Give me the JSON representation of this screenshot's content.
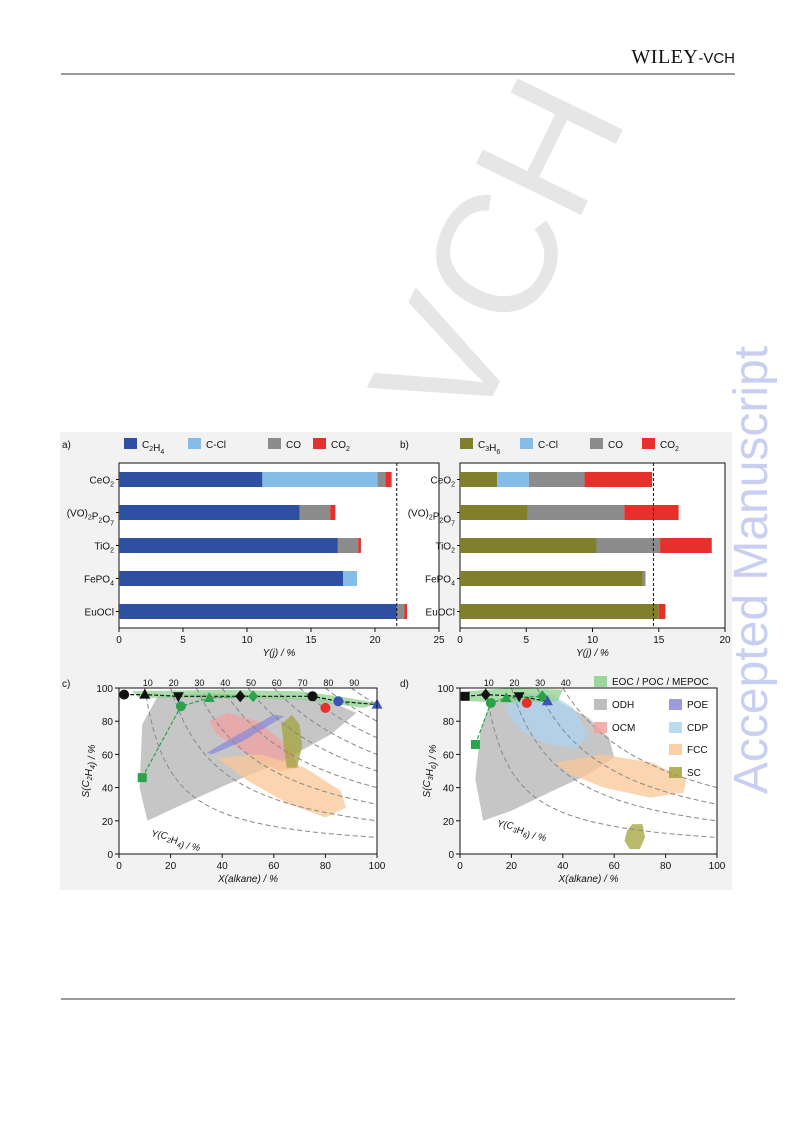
{
  "header": {
    "publisher": "WILEY",
    "publisher_suffix": "-VCH"
  },
  "watermarks": {
    "diagonal": "VCH",
    "vertical": "Accepted Manuscript"
  },
  "chart_data": [
    {
      "panel": "a)",
      "type": "bar",
      "orientation": "horizontal",
      "stacked": true,
      "categories": [
        "CeO2",
        "(VO)2P2O7",
        "TiO2",
        "FePO4",
        "EuOCl"
      ],
      "series": [
        {
          "name": "C2H4",
          "color": "#2f4fa3",
          "values": [
            11.2,
            14.1,
            17.1,
            17.5,
            21.7
          ]
        },
        {
          "name": "C-Cl",
          "color": "#85bde6",
          "values": [
            9.0,
            0.0,
            0.0,
            1.1,
            0.0
          ]
        },
        {
          "name": "CO",
          "color": "#8c8c8c",
          "values": [
            0.6,
            2.4,
            1.6,
            0.0,
            0.6
          ]
        },
        {
          "name": "CO2",
          "color": "#e5302b",
          "values": [
            0.5,
            0.4,
            0.2,
            0.0,
            0.2
          ]
        }
      ],
      "reference_line": 21.7,
      "xlabel": "Y(j) / %",
      "xlim": [
        0,
        25
      ],
      "xticks": [
        0,
        5,
        10,
        15,
        20,
        25
      ]
    },
    {
      "panel": "b)",
      "type": "bar",
      "orientation": "horizontal",
      "stacked": true,
      "categories": [
        "CeO2",
        "(VO)2P2O7",
        "TiO2",
        "FePO4",
        "EuOCl"
      ],
      "series": [
        {
          "name": "C3H6",
          "color": "#7f7f2c",
          "values": [
            2.8,
            5.1,
            10.3,
            13.8,
            15.0
          ]
        },
        {
          "name": "C-Cl",
          "color": "#85bde6",
          "values": [
            2.4,
            0.0,
            0.0,
            0.0,
            0.0
          ]
        },
        {
          "name": "CO",
          "color": "#8c8c8c",
          "values": [
            4.2,
            7.3,
            4.8,
            0.2,
            0.0
          ]
        },
        {
          "name": "CO2",
          "color": "#e5302b",
          "values": [
            5.1,
            4.1,
            3.9,
            0.0,
            0.5
          ]
        }
      ],
      "reference_line": 14.6,
      "xlabel": "Y(j) / %",
      "xlim": [
        0,
        20
      ],
      "xticks": [
        0,
        5,
        10,
        15,
        20
      ]
    },
    {
      "panel": "c)",
      "type": "scatter",
      "xlabel": "X(alkane) / %",
      "ylabel": "S(C2H4) / %",
      "xlim": [
        0,
        100
      ],
      "ylim": [
        0,
        100
      ],
      "xticks": [
        0,
        20,
        40,
        60,
        80,
        100
      ],
      "yticks": [
        0,
        20,
        40,
        60,
        80,
        100
      ],
      "iso_yield_label": "Y(C2H4) / %",
      "iso_yield_values": [
        "10",
        "20",
        "30",
        "40",
        "50",
        "60",
        "70",
        "80",
        "90"
      ],
      "regions": [
        {
          "name": "ODH",
          "color": "#b3b3b3",
          "points": [
            [
              9,
              78
            ],
            [
              15,
              95
            ],
            [
              35,
              97
            ],
            [
              60,
              95
            ],
            [
              80,
              93
            ],
            [
              92,
              85
            ],
            [
              82,
              72
            ],
            [
              62,
              55
            ],
            [
              42,
              42
            ],
            [
              22,
              28
            ],
            [
              11,
              20
            ],
            [
              8,
              40
            ]
          ]
        },
        {
          "name": "OCM",
          "color": "#f2a0a0",
          "points": [
            [
              35,
              80
            ],
            [
              42,
              85
            ],
            [
              54,
              80
            ],
            [
              66,
              64
            ],
            [
              70,
              52
            ],
            [
              62,
              50
            ],
            [
              50,
              60
            ],
            [
              38,
              72
            ]
          ]
        },
        {
          "name": "FCC",
          "color": "#fac796",
          "points": [
            [
              38,
              58
            ],
            [
              55,
              60
            ],
            [
              72,
              52
            ],
            [
              86,
              38
            ],
            [
              88,
              28
            ],
            [
              80,
              22
            ],
            [
              66,
              30
            ],
            [
              50,
              44
            ]
          ]
        },
        {
          "name": "POE",
          "color": "#8a8ad8",
          "points": [
            [
              36,
              60
            ],
            [
              48,
              68
            ],
            [
              64,
              83
            ],
            [
              60,
              84
            ],
            [
              44,
              70
            ],
            [
              34,
              61
            ]
          ]
        },
        {
          "name": "SC",
          "color": "#a3a33c",
          "points": [
            [
              63,
              78
            ],
            [
              67,
              84
            ],
            [
              70,
              78
            ],
            [
              71,
              65
            ],
            [
              69,
              52
            ],
            [
              65,
              52
            ],
            [
              64,
              63
            ]
          ]
        },
        {
          "name": "EOC / POC / MEPOC",
          "color": "#8fd08f",
          "points": [
            [
              5,
              98
            ],
            [
              40,
              99
            ],
            [
              70,
              98
            ],
            [
              85,
              95
            ],
            [
              100,
              91
            ],
            [
              95,
              88
            ],
            [
              70,
              93
            ],
            [
              40,
              94
            ],
            [
              8,
              94
            ]
          ]
        }
      ],
      "series": [
        {
          "name": "",
          "color": "#111111",
          "marker": "circle",
          "points": [
            [
              2,
              96
            ],
            [
              75,
              95
            ]
          ]
        },
        {
          "name": "",
          "color": "#111111",
          "marker": "triangle-up",
          "points": [
            [
              10,
              96
            ]
          ]
        },
        {
          "name": "",
          "color": "#111111",
          "marker": "triangle-down",
          "points": [
            [
              23,
              95
            ]
          ]
        },
        {
          "name": "",
          "color": "#111111",
          "marker": "diamond",
          "points": [
            [
              47,
              95
            ]
          ]
        },
        {
          "name": "",
          "color": "#2aa34a",
          "marker": "square",
          "points": [
            [
              9,
              46
            ]
          ]
        },
        {
          "name": "",
          "color": "#2aa34a",
          "marker": "circle",
          "points": [
            [
              24,
              89
            ]
          ]
        },
        {
          "name": "",
          "color": "#2aa34a",
          "marker": "triangle-up",
          "points": [
            [
              35,
              94
            ]
          ]
        },
        {
          "name": "",
          "color": "#2aa34a",
          "marker": "diamond",
          "points": [
            [
              52,
              95
            ]
          ]
        },
        {
          "name": "",
          "color": "#e5302b",
          "marker": "circle",
          "points": [
            [
              80,
              88
            ]
          ]
        },
        {
          "name": "",
          "color": "#3a56b5",
          "marker": "circle",
          "points": [
            [
              85,
              92
            ]
          ]
        },
        {
          "name": "",
          "color": "#3a56b5",
          "marker": "triangle-up",
          "points": [
            [
              100,
              90
            ]
          ]
        }
      ]
    },
    {
      "panel": "d)",
      "type": "scatter",
      "xlabel": "X(alkane) / %",
      "ylabel": "S(C3H6) / %",
      "xlim": [
        0,
        100
      ],
      "ylim": [
        0,
        100
      ],
      "xticks": [
        0,
        20,
        40,
        60,
        80,
        100
      ],
      "yticks": [
        0,
        20,
        40,
        60,
        80,
        100
      ],
      "iso_yield_label": "Y(C3H6) / %",
      "iso_yield_values": [
        "10",
        "20",
        "30",
        "40"
      ],
      "legend": [
        "EOC / POC / MEPOC",
        "ODH",
        "POE",
        "OCM",
        "CDP",
        "FCC",
        "SC"
      ],
      "regions": [
        {
          "name": "ODH",
          "color": "#b3b3b3",
          "points": [
            [
              8,
              75
            ],
            [
              12,
              92
            ],
            [
              24,
              97
            ],
            [
              38,
              92
            ],
            [
              50,
              82
            ],
            [
              58,
              70
            ],
            [
              60,
              58
            ],
            [
              50,
              48
            ],
            [
              36,
              38
            ],
            [
              20,
              26
            ],
            [
              9,
              20
            ],
            [
              6,
              45
            ]
          ]
        },
        {
          "name": "CDP",
          "color": "#aed3f0",
          "points": [
            [
              18,
              90
            ],
            [
              25,
              97
            ],
            [
              36,
              96
            ],
            [
              44,
              88
            ],
            [
              50,
              72
            ],
            [
              46,
              64
            ],
            [
              34,
              66
            ],
            [
              24,
              74
            ],
            [
              19,
              84
            ]
          ]
        },
        {
          "name": "FCC",
          "color": "#fac796",
          "points": [
            [
              37,
              55
            ],
            [
              55,
              60
            ],
            [
              75,
              55
            ],
            [
              88,
              45
            ],
            [
              87,
              37
            ],
            [
              74,
              34
            ],
            [
              56,
              40
            ],
            [
              43,
              48
            ]
          ]
        },
        {
          "name": "SC",
          "color": "#a3a33c",
          "points": [
            [
              65,
              14
            ],
            [
              67,
              18
            ],
            [
              71,
              18
            ],
            [
              72,
              10
            ],
            [
              70,
              3
            ],
            [
              66,
              3
            ],
            [
              64,
              8
            ]
          ]
        },
        {
          "name": "EOC / POC / MEPOC",
          "color": "#8fd08f",
          "points": [
            [
              3,
              98
            ],
            [
              20,
              100
            ],
            [
              40,
              99
            ],
            [
              38,
              92
            ],
            [
              20,
              91
            ],
            [
              4,
              92
            ]
          ]
        }
      ],
      "series": [
        {
          "name": "",
          "color": "#111111",
          "marker": "square",
          "points": [
            [
              2,
              95
            ]
          ]
        },
        {
          "name": "",
          "color": "#111111",
          "marker": "diamond",
          "points": [
            [
              10,
              96
            ]
          ]
        },
        {
          "name": "",
          "color": "#111111",
          "marker": "triangle-down",
          "points": [
            [
              23,
              95
            ]
          ]
        },
        {
          "name": "",
          "color": "#2aa34a",
          "marker": "square",
          "points": [
            [
              6,
              66
            ]
          ]
        },
        {
          "name": "",
          "color": "#2aa34a",
          "marker": "circle",
          "points": [
            [
              12,
              91
            ]
          ]
        },
        {
          "name": "",
          "color": "#2aa34a",
          "marker": "triangle-up",
          "points": [
            [
              18,
              94
            ]
          ]
        },
        {
          "name": "",
          "color": "#2aa34a",
          "marker": "diamond",
          "points": [
            [
              32,
              95
            ]
          ]
        },
        {
          "name": "",
          "color": "#e5302b",
          "marker": "circle",
          "points": [
            [
              26,
              91
            ]
          ]
        },
        {
          "name": "",
          "color": "#3a56b5",
          "marker": "triangle-up",
          "points": [
            [
              34,
              92
            ]
          ]
        }
      ]
    }
  ],
  "colors": {
    "panel_background": "#f2f2f2",
    "rule": "#9a9a9a",
    "watermark_gray": "#e6e6e6",
    "watermark_blue": "#c9cff0"
  }
}
